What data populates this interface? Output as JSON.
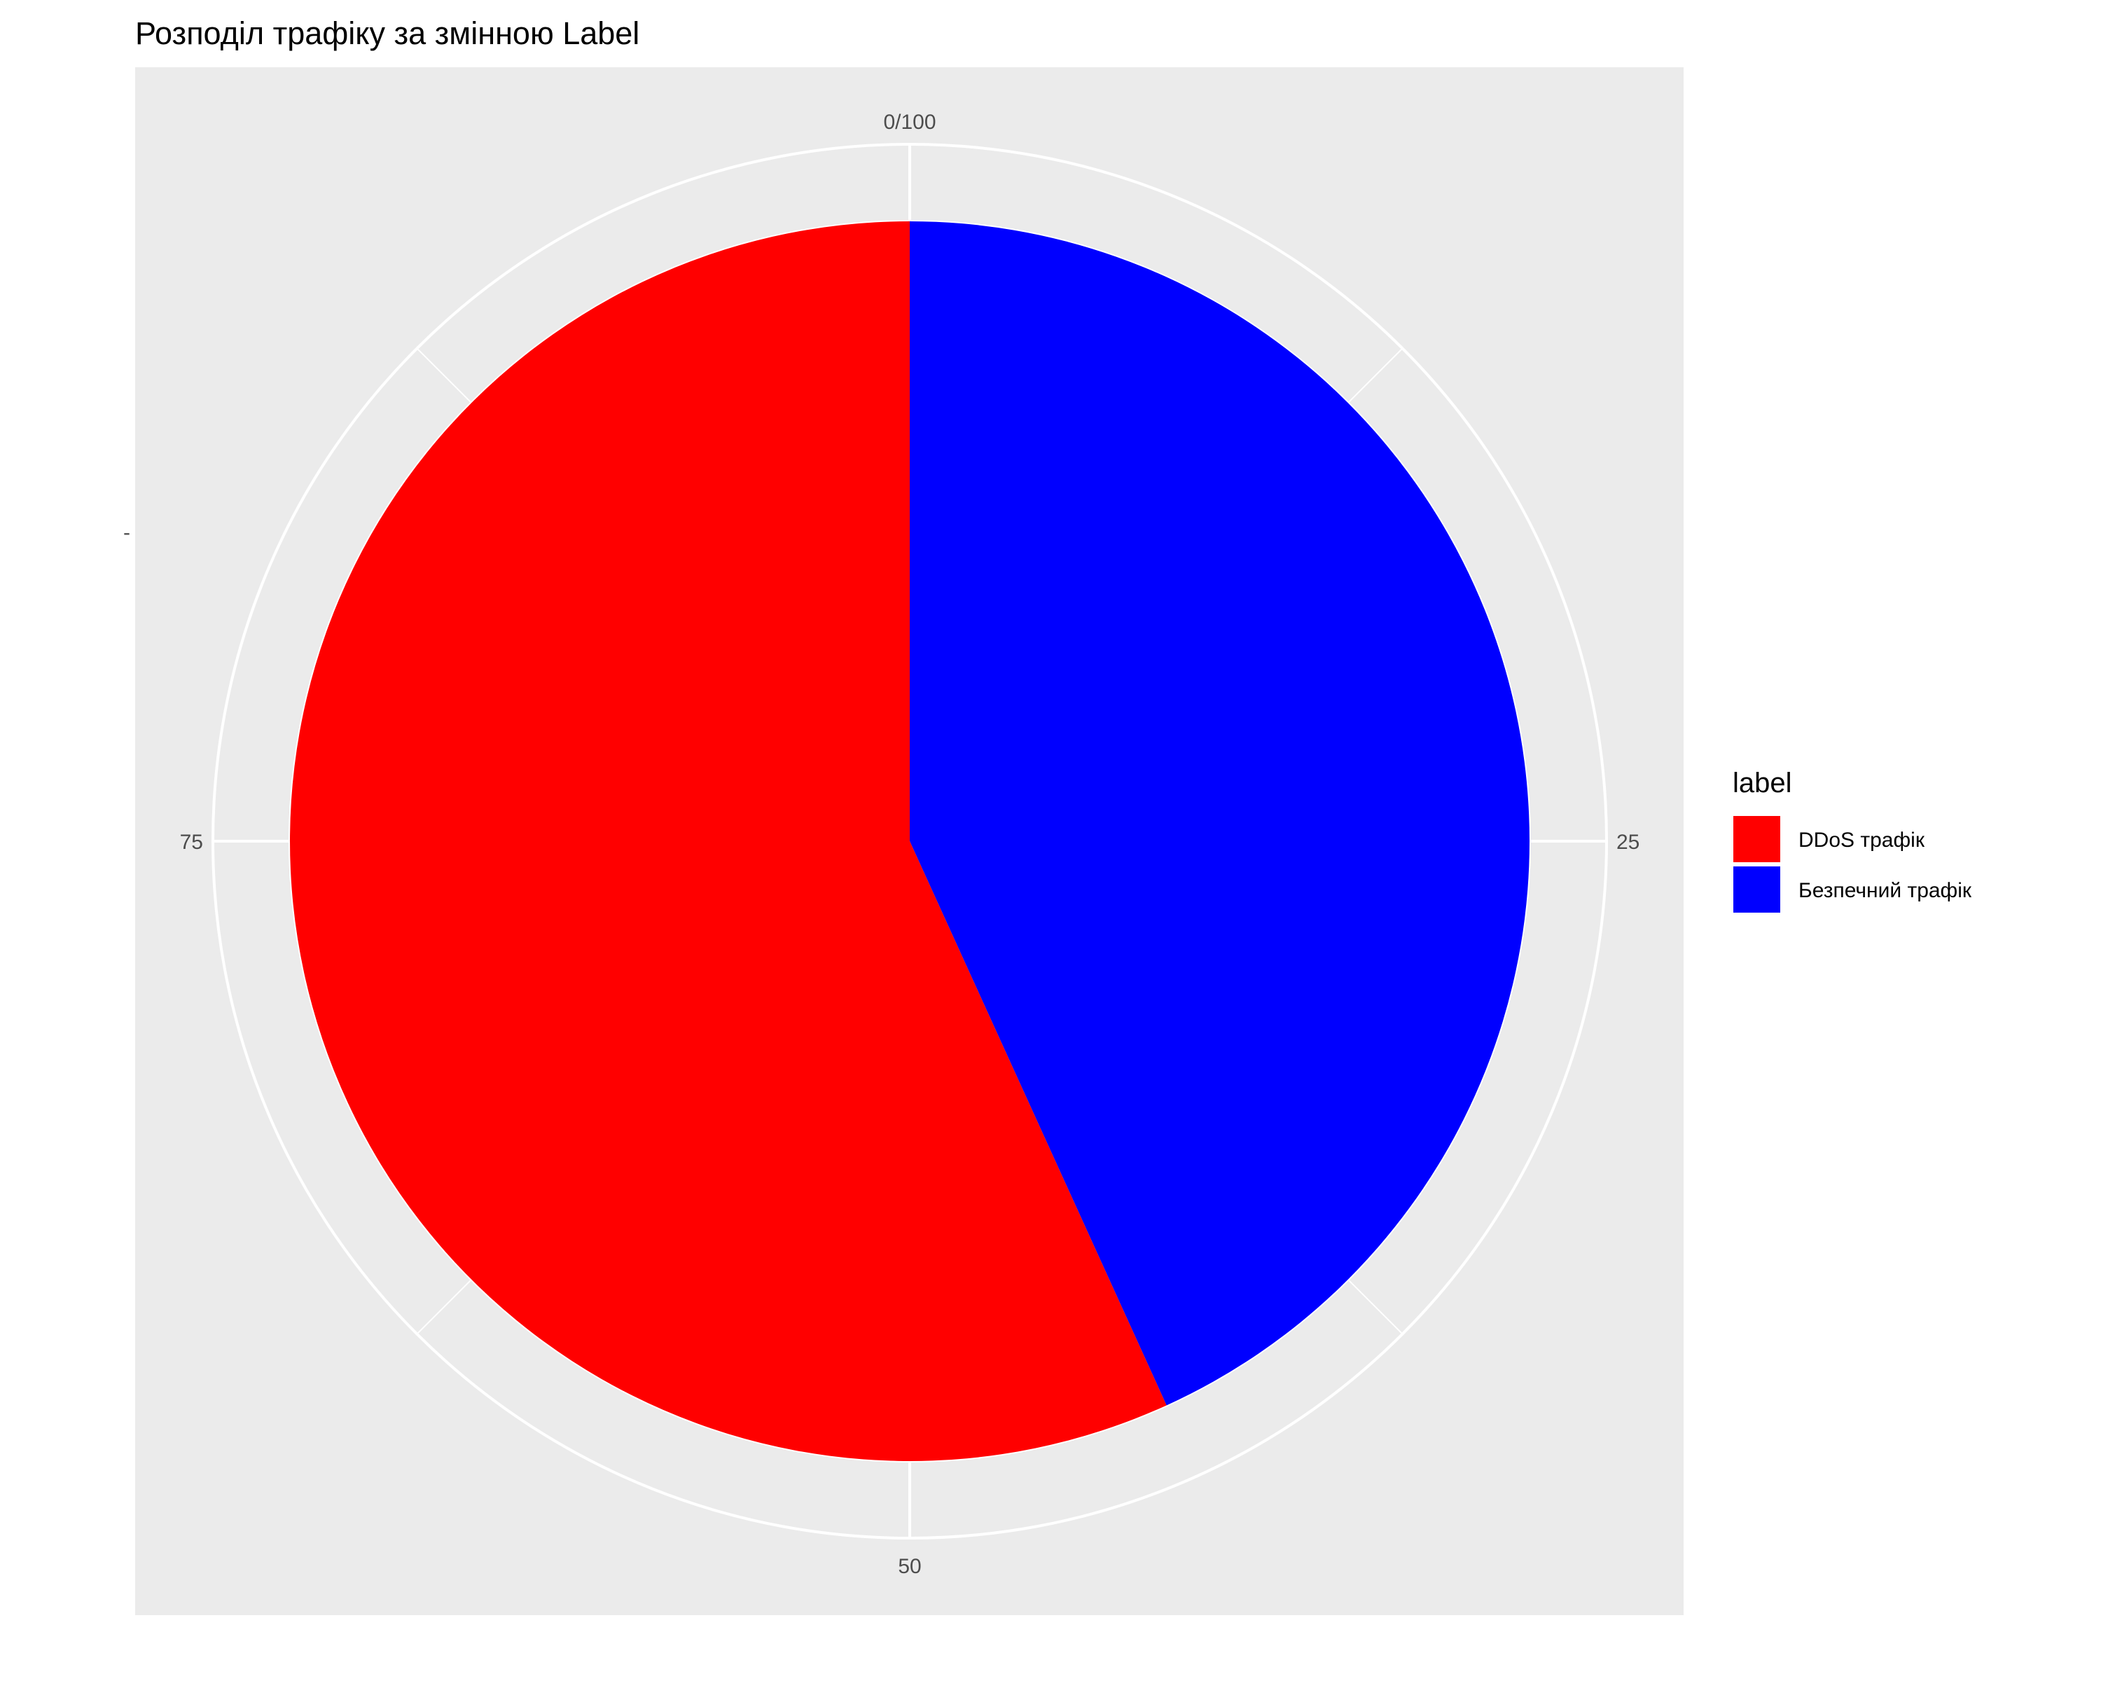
{
  "chart_data": {
    "type": "pie",
    "title": "Розподіл трафіку за змінною Label",
    "coord": "polar",
    "theta_ticks": [
      "0/100",
      "25",
      "50",
      "75"
    ],
    "theta_tick_values": [
      0,
      25,
      50,
      75
    ],
    "y_tick_label": "-",
    "legend": {
      "title": "label",
      "position": "right"
    },
    "slices": [
      {
        "name": "Безпечний трафік",
        "percent": 43.2,
        "color": "#0000FF"
      },
      {
        "name": "DDoS трафік",
        "percent": 56.8,
        "color": "#FF0000"
      }
    ],
    "legend_entries": [
      {
        "name": "DDoS трафік",
        "color": "#FF0000"
      },
      {
        "name": "Безпечний трафік",
        "color": "#0000FF"
      }
    ],
    "panel_background": "#EBEBEB",
    "grid_color": "#FFFFFF",
    "grid": true
  }
}
